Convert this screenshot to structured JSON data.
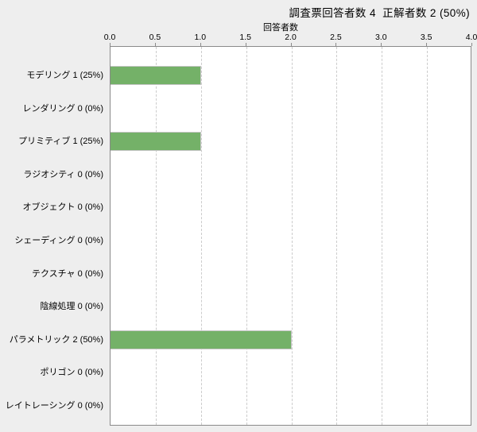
{
  "title": "調査票回答者数 4  正解者数 2 (50%)",
  "chart_data": {
    "type": "bar",
    "orientation": "horizontal",
    "title": "調査票回答者数 4  正解者数 2 (50%)",
    "xlabel": "回答者数",
    "ylabel": "",
    "xlim": [
      0,
      4
    ],
    "x_ticks": [
      "0.0",
      "0.5",
      "1.0",
      "1.5",
      "2.0",
      "2.5",
      "3.0",
      "3.5",
      "4.0"
    ],
    "grid": "vertical-dashed",
    "legend": "none",
    "categories": [
      "モデリング",
      "レンダリング",
      "プリミティブ",
      "ラジオシティ",
      "オブジェクト",
      "シェーディング",
      "テクスチャ",
      "陰線処理",
      "パラメトリック",
      "ポリゴン",
      "レイトレーシング"
    ],
    "category_labels": [
      "モデリング 1 (25%)",
      "レンダリング 0 (0%)",
      "プリミティブ 1 (25%)",
      "ラジオシティ 0 (0%)",
      "オブジェクト 0 (0%)",
      "シェーディング 0 (0%)",
      "テクスチャ 0 (0%)",
      "陰線処理 0 (0%)",
      "パラメトリック 2 (50%)",
      "ポリゴン 0 (0%)",
      "レイトレーシング 0 (0%)"
    ],
    "values": [
      1,
      0,
      1,
      0,
      0,
      0,
      0,
      0,
      2,
      0,
      0
    ],
    "percent_labels": [
      "25%",
      "0%",
      "25%",
      "0%",
      "0%",
      "0%",
      "0%",
      "0%",
      "50%",
      "0%",
      "0%"
    ],
    "colors": {
      "bar_fill": "#74b168",
      "bar_border": "#c6c6c6",
      "plot_background": "#ffffff",
      "page_background": "#eeeeee",
      "plot_border": "#8a8a8a",
      "gridline": "#cccccc",
      "text": "#000000"
    }
  }
}
